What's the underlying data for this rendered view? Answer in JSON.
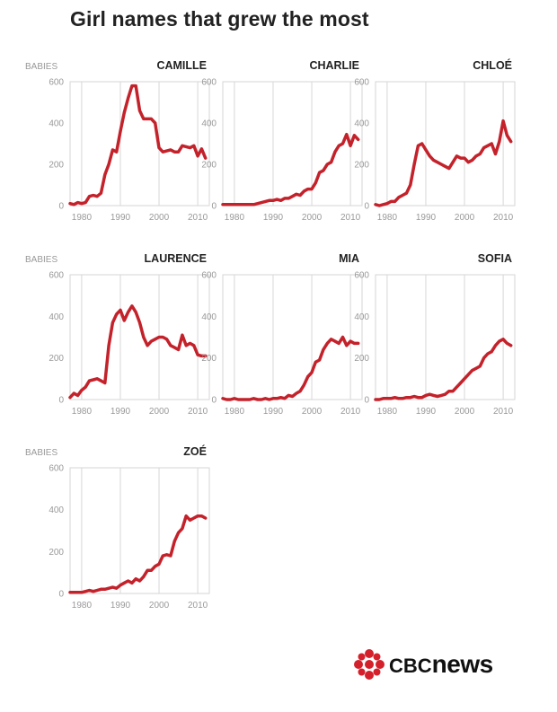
{
  "title": "Girl names that grew the most",
  "colors": {
    "line": "#c4222b",
    "grid": "#d6d6d6",
    "axis_text": "#999999",
    "name_text": "#222222",
    "logo_red": "#d4202a"
  },
  "logo": {
    "cbc": "CBC",
    "news": "news"
  },
  "axis": {
    "ylabel": "BABIES",
    "yticks": [
      0,
      200,
      400,
      600
    ],
    "xticks": [
      1980,
      1990,
      2000,
      2010
    ],
    "xlim": [
      1977,
      2013
    ],
    "ylim": [
      0,
      600
    ]
  },
  "chart_data": [
    {
      "type": "line",
      "title": "CAMILLE",
      "x": [
        1977,
        1978,
        1979,
        1980,
        1981,
        1982,
        1983,
        1984,
        1985,
        1986,
        1987,
        1988,
        1989,
        1990,
        1991,
        1992,
        1993,
        1994,
        1995,
        1996,
        1997,
        1998,
        1999,
        2000,
        2001,
        2002,
        2003,
        2004,
        2005,
        2006,
        2007,
        2008,
        2009,
        2010,
        2011,
        2012
      ],
      "y": [
        10,
        5,
        15,
        10,
        15,
        45,
        50,
        45,
        60,
        150,
        200,
        270,
        260,
        360,
        450,
        520,
        580,
        580,
        460,
        420,
        420,
        420,
        400,
        280,
        260,
        265,
        270,
        260,
        260,
        290,
        285,
        280,
        290,
        240,
        275,
        230
      ]
    },
    {
      "type": "line",
      "title": "CHARLIE",
      "x": [
        1977,
        1978,
        1979,
        1980,
        1981,
        1982,
        1983,
        1984,
        1985,
        1986,
        1987,
        1988,
        1989,
        1990,
        1991,
        1992,
        1993,
        1994,
        1995,
        1996,
        1997,
        1998,
        1999,
        2000,
        2001,
        2002,
        2003,
        2004,
        2005,
        2006,
        2007,
        2008,
        2009,
        2010,
        2011,
        2012
      ],
      "y": [
        5,
        5,
        5,
        5,
        5,
        5,
        5,
        5,
        5,
        10,
        15,
        20,
        25,
        25,
        30,
        25,
        35,
        35,
        45,
        55,
        50,
        70,
        80,
        80,
        110,
        160,
        170,
        200,
        210,
        260,
        290,
        300,
        345,
        290,
        340,
        320
      ]
    },
    {
      "type": "line",
      "title": "CHLOÉ",
      "x": [
        1977,
        1978,
        1979,
        1980,
        1981,
        1982,
        1983,
        1984,
        1985,
        1986,
        1987,
        1988,
        1989,
        1990,
        1991,
        1992,
        1993,
        1994,
        1995,
        1996,
        1997,
        1998,
        1999,
        2000,
        2001,
        2002,
        2003,
        2004,
        2005,
        2006,
        2007,
        2008,
        2009,
        2010,
        2011,
        2012
      ],
      "y": [
        5,
        0,
        5,
        10,
        20,
        20,
        40,
        50,
        60,
        100,
        200,
        290,
        300,
        270,
        240,
        220,
        210,
        200,
        190,
        180,
        210,
        240,
        230,
        230,
        210,
        220,
        240,
        250,
        280,
        290,
        300,
        250,
        310,
        410,
        340,
        310
      ]
    },
    {
      "type": "line",
      "title": "LAURENCE",
      "x": [
        1977,
        1978,
        1979,
        1980,
        1981,
        1982,
        1983,
        1984,
        1985,
        1986,
        1987,
        1988,
        1989,
        1990,
        1991,
        1992,
        1993,
        1994,
        1995,
        1996,
        1997,
        1998,
        1999,
        2000,
        2001,
        2002,
        2003,
        2004,
        2005,
        2006,
        2007,
        2008,
        2009,
        2010,
        2011,
        2012
      ],
      "y": [
        10,
        30,
        20,
        45,
        60,
        90,
        95,
        100,
        90,
        80,
        260,
        370,
        410,
        430,
        380,
        420,
        450,
        420,
        370,
        300,
        260,
        280,
        290,
        300,
        300,
        290,
        260,
        250,
        240,
        310,
        260,
        270,
        260,
        215,
        210,
        210
      ]
    },
    {
      "type": "line",
      "title": "MIA",
      "x": [
        1977,
        1978,
        1979,
        1980,
        1981,
        1982,
        1983,
        1984,
        1985,
        1986,
        1987,
        1988,
        1989,
        1990,
        1991,
        1992,
        1993,
        1994,
        1995,
        1996,
        1997,
        1998,
        1999,
        2000,
        2001,
        2002,
        2003,
        2004,
        2005,
        2006,
        2007,
        2008,
        2009,
        2010,
        2011,
        2012
      ],
      "y": [
        5,
        0,
        0,
        5,
        0,
        0,
        0,
        0,
        5,
        0,
        0,
        5,
        0,
        5,
        5,
        10,
        5,
        20,
        15,
        30,
        40,
        70,
        110,
        130,
        180,
        190,
        240,
        270,
        290,
        280,
        270,
        300,
        260,
        280,
        270,
        270
      ]
    },
    {
      "type": "line",
      "title": "SOFIA",
      "x": [
        1977,
        1978,
        1979,
        1980,
        1981,
        1982,
        1983,
        1984,
        1985,
        1986,
        1987,
        1988,
        1989,
        1990,
        1991,
        1992,
        1993,
        1994,
        1995,
        1996,
        1997,
        1998,
        1999,
        2000,
        2001,
        2002,
        2003,
        2004,
        2005,
        2006,
        2007,
        2008,
        2009,
        2010,
        2011,
        2012
      ],
      "y": [
        0,
        0,
        5,
        5,
        5,
        10,
        5,
        5,
        10,
        10,
        15,
        10,
        10,
        20,
        25,
        20,
        15,
        20,
        25,
        40,
        40,
        60,
        80,
        100,
        120,
        140,
        150,
        160,
        200,
        220,
        230,
        260,
        280,
        290,
        270,
        260
      ]
    },
    {
      "type": "line",
      "title": "ZOÉ",
      "x": [
        1977,
        1978,
        1979,
        1980,
        1981,
        1982,
        1983,
        1984,
        1985,
        1986,
        1987,
        1988,
        1989,
        1990,
        1991,
        1992,
        1993,
        1994,
        1995,
        1996,
        1997,
        1998,
        1999,
        2000,
        2001,
        2002,
        2003,
        2004,
        2005,
        2006,
        2007,
        2008,
        2009,
        2010,
        2011,
        2012
      ],
      "y": [
        5,
        5,
        5,
        5,
        10,
        15,
        10,
        15,
        20,
        20,
        25,
        30,
        25,
        40,
        50,
        60,
        50,
        70,
        60,
        80,
        110,
        110,
        130,
        140,
        180,
        185,
        180,
        250,
        290,
        310,
        370,
        350,
        360,
        370,
        370,
        360
      ]
    }
  ]
}
